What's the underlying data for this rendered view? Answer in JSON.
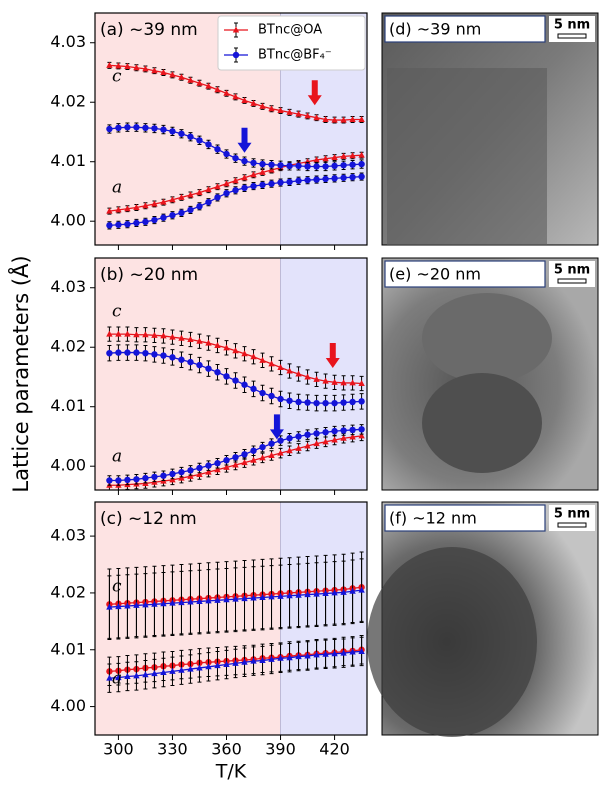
{
  "y_label": "Lattice parameters (Å)",
  "x_label": "T/K",
  "chart_data": [
    {
      "type": "errorbar",
      "title": "(a) ~39 nm",
      "legend": "upper right",
      "x": [
        295,
        300,
        305,
        310,
        315,
        320,
        325,
        330,
        335,
        340,
        345,
        350,
        355,
        360,
        365,
        370,
        375,
        380,
        385,
        390,
        395,
        400,
        405,
        410,
        415,
        420,
        425,
        430,
        435
      ],
      "xlim": [
        287,
        438
      ],
      "xticks": [
        300,
        330,
        360,
        390,
        420
      ],
      "ylim": [
        3.996,
        4.035
      ],
      "yticks": [
        {
          "value": 4.0,
          "label": "4.00"
        },
        4.01,
        4.02,
        4.03
      ],
      "phase_boundary": 390,
      "labels": [
        "c",
        "a"
      ],
      "series": [
        {
          "name": "BTnc@OA",
          "color": "#e8141c",
          "marker": "triangle",
          "c": [
            4.0262,
            4.0261,
            4.026,
            4.0258,
            4.0256,
            4.0253,
            4.025,
            4.0246,
            4.0242,
            4.0237,
            4.0232,
            4.0227,
            4.0221,
            4.0215,
            4.0209,
            4.0203,
            4.0198,
            4.0193,
            4.0189,
            4.0186,
            4.0183,
            4.018,
            4.0177,
            4.0174,
            4.0171,
            4.017,
            4.017,
            4.0171,
            4.0171
          ],
          "c_err": 0.0005,
          "a": [
            4.0017,
            4.0019,
            4.0021,
            4.0023,
            4.0026,
            4.0029,
            4.0032,
            4.0036,
            4.004,
            4.0044,
            4.0048,
            4.0053,
            4.0058,
            4.0063,
            4.0068,
            4.0073,
            4.0078,
            4.0082,
            4.0086,
            4.009,
            4.0094,
            4.0097,
            4.01,
            4.0103,
            4.0105,
            4.0107,
            4.0109,
            4.011,
            4.0111
          ],
          "a_err": 0.0005
        },
        {
          "name": "BTnc@BF₄⁻",
          "color": "#1414d8",
          "marker": "circle",
          "c": [
            4.0155,
            4.0157,
            4.0158,
            4.0158,
            4.0157,
            4.0156,
            4.0154,
            4.0151,
            4.0147,
            4.0142,
            4.0136,
            4.0129,
            4.0121,
            4.0113,
            4.0106,
            4.0101,
            4.0098,
            4.0096,
            4.0095,
            4.0094,
            4.0093,
            4.0093,
            4.0092,
            4.0092,
            4.0092,
            4.0093,
            4.0094,
            4.0095,
            4.0096
          ],
          "c_err": 0.0007,
          "a": [
            3.9993,
            3.9994,
            3.9995,
            3.9997,
            3.9999,
            4.0002,
            4.0006,
            4.001,
            4.0014,
            4.0019,
            4.0025,
            4.0032,
            4.004,
            4.0047,
            4.0052,
            4.0056,
            4.0059,
            4.0061,
            4.0063,
            4.0065,
            4.0066,
            4.0068,
            4.0069,
            4.007,
            4.0071,
            4.0072,
            4.0073,
            4.0074,
            4.0075
          ],
          "a_err": 0.0006
        }
      ],
      "arrows": [
        {
          "x": 409,
          "y": 4.0195,
          "color": "#e8141c"
        },
        {
          "x": 370,
          "y": 4.0115,
          "color": "#1414d8"
        }
      ]
    },
    {
      "type": "errorbar",
      "title": "(b) ~20 nm",
      "x": [
        295,
        300,
        305,
        310,
        315,
        320,
        325,
        330,
        335,
        340,
        345,
        350,
        355,
        360,
        365,
        370,
        375,
        380,
        385,
        390,
        395,
        400,
        405,
        410,
        415,
        420,
        425,
        430,
        435
      ],
      "xlim": [
        287,
        438
      ],
      "xticks": [
        300,
        330,
        360,
        390,
        420
      ],
      "ylim": [
        3.996,
        4.035
      ],
      "yticks": [
        {
          "value": 4.0,
          "label": "4.00"
        },
        4.01,
        4.02,
        4.03
      ],
      "phase_boundary": 390,
      "labels": [
        "c",
        "a"
      ],
      "series": [
        {
          "name": "BTnc@OA",
          "color": "#e8141c",
          "marker": "triangle",
          "c": [
            4.0222,
            4.0222,
            4.0222,
            4.0221,
            4.0221,
            4.022,
            4.0219,
            4.0217,
            4.0215,
            4.0213,
            4.021,
            4.0207,
            4.0203,
            4.0199,
            4.0194,
            4.0189,
            4.0184,
            4.0178,
            4.0172,
            4.0166,
            4.016,
            4.0155,
            4.015,
            4.0146,
            4.0143,
            4.0141,
            4.014,
            4.014,
            4.0139
          ],
          "c_err": 0.0012,
          "a": [
            3.9968,
            3.9968,
            3.9969,
            3.997,
            3.9971,
            3.9973,
            3.9975,
            3.9977,
            3.998,
            3.9983,
            3.9986,
            3.999,
            3.9994,
            3.9998,
            4.0002,
            4.0006,
            4.001,
            4.0014,
            4.0018,
            4.0022,
            4.0026,
            4.003,
            4.0034,
            4.0038,
            4.0041,
            4.0044,
            4.0047,
            4.0049,
            4.0051
          ],
          "a_err": 0.0008
        },
        {
          "name": "BTnc@BF₄⁻",
          "color": "#1414d8",
          "marker": "circle",
          "c": [
            4.019,
            4.0191,
            4.0191,
            4.0191,
            4.019,
            4.0188,
            4.0186,
            4.0183,
            4.0179,
            4.0175,
            4.017,
            4.0164,
            4.0158,
            4.0151,
            4.0144,
            4.0137,
            4.013,
            4.0123,
            4.0118,
            4.0113,
            4.011,
            4.0108,
            4.0107,
            4.0106,
            4.0106,
            4.0106,
            4.0107,
            4.0108,
            4.0109
          ],
          "c_err": 0.0013,
          "a": [
            3.9976,
            3.9976,
            3.9977,
            3.9978,
            3.998,
            3.9982,
            3.9984,
            3.9987,
            3.999,
            3.9993,
            3.9997,
            4.0001,
            4.0005,
            4.001,
            4.0015,
            4.002,
            4.0026,
            4.0032,
            4.0038,
            4.0043,
            4.0047,
            4.005,
            4.0053,
            4.0055,
            4.0057,
            4.0059,
            4.006,
            4.0061,
            4.0062
          ],
          "a_err": 0.0008
        }
      ],
      "arrows": [
        {
          "x": 419,
          "y": 4.0165,
          "color": "#e8141c"
        },
        {
          "x": 388,
          "y": 4.0045,
          "color": "#1414d8"
        }
      ]
    },
    {
      "type": "errorbar",
      "title": "(c) ~12 nm",
      "x": [
        295,
        300,
        305,
        310,
        315,
        320,
        325,
        330,
        335,
        340,
        345,
        350,
        355,
        360,
        365,
        370,
        375,
        380,
        385,
        390,
        395,
        400,
        405,
        410,
        415,
        420,
        425,
        430,
        435
      ],
      "xlim": [
        287,
        438
      ],
      "xticks": [
        300,
        330,
        360,
        390,
        420
      ],
      "ylim": [
        3.995,
        4.036
      ],
      "yticks": [
        {
          "value": 4.0,
          "label": "4.00"
        },
        4.01,
        4.02,
        4.03
      ],
      "phase_boundary": 390,
      "labels": [
        "c",
        "a"
      ],
      "series": [
        {
          "name": "BTnc@OA",
          "color": "#e8141c",
          "marker": "circle",
          "c": [
            4.018,
            4.0181,
            4.0182,
            4.0183,
            4.0184,
            4.0185,
            4.0186,
            4.0187,
            4.0188,
            4.0189,
            4.019,
            4.0191,
            4.0192,
            4.0193,
            4.0194,
            4.0195,
            4.0196,
            4.0197,
            4.0198,
            4.0199,
            4.02,
            4.0201,
            4.0202,
            4.0203,
            4.0204,
            4.0205,
            4.0206,
            4.0208,
            4.021
          ],
          "c_err": 0.0062,
          "a": [
            4.0062,
            4.0063,
            4.0065,
            4.0066,
            4.0068,
            4.0069,
            4.0071,
            4.0072,
            4.0074,
            4.0075,
            4.0077,
            4.0078,
            4.0079,
            4.008,
            4.0081,
            4.0082,
            4.0083,
            4.0085,
            4.0086,
            4.0087,
            4.0089,
            4.009,
            4.0091,
            4.0093,
            4.0094,
            4.0095,
            4.0097,
            4.0098,
            4.01
          ],
          "a_err": 0.0025
        },
        {
          "name": "BTnc@BF₄⁻",
          "color": "#1414d8",
          "marker": "triangle",
          "c": [
            4.0175,
            4.0176,
            4.0177,
            4.0178,
            4.0179,
            4.018,
            4.0181,
            4.0182,
            4.0183,
            4.0184,
            4.0185,
            4.0186,
            4.0187,
            4.0188,
            4.0189,
            4.019,
            4.0191,
            4.0192,
            4.0193,
            4.0194,
            4.0195,
            4.0196,
            4.0197,
            4.0198,
            4.0199,
            4.02,
            4.0201,
            4.0203,
            4.0205
          ],
          "c_err": 0.0055,
          "a": [
            4.005,
            4.0051,
            4.0053,
            4.0054,
            4.0056,
            4.0058,
            4.006,
            4.0062,
            4.0064,
            4.0066,
            4.0068,
            4.007,
            4.0072,
            4.0074,
            4.0076,
            4.0078,
            4.008,
            4.0081,
            4.0083,
            4.0085,
            4.0086,
            4.0088,
            4.0089,
            4.0091,
            4.0092,
            4.0093,
            4.0094,
            4.0096,
            4.0097
          ],
          "a_err": 0.0025
        }
      ],
      "arrows": []
    }
  ],
  "images": [
    {
      "label": "(d) ~39 nm",
      "scale": "5 nm"
    },
    {
      "label": "(e) ~20 nm",
      "scale": "5 nm"
    },
    {
      "label": "(f) ~12 nm",
      "scale": "5 nm"
    }
  ]
}
